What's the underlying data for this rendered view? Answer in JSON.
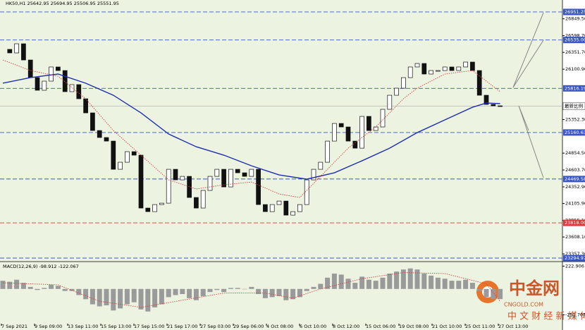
{
  "header": "HK50,H1 25642.95 25694.95 25506.95 25551.95",
  "chart_data": {
    "type": "candlestick",
    "close": [
      26396,
      26343,
      26479,
      26238,
      25976,
      25788,
      25924,
      26134,
      26081,
      25767,
      25872,
      25662,
      25452,
      25190,
      25086,
      25033,
      24614,
      24719,
      24876,
      24824,
      24038,
      23985,
      24090,
      24111,
      24614,
      24457,
      24509,
      24195,
      24038,
      24300,
      24509,
      24614,
      24352,
      24614,
      24562,
      24509,
      24614,
      24090,
      23985,
      24090,
      24142,
      23933,
      23985,
      24090,
      24457,
      24614,
      24719,
      25033,
      25295,
      25243,
      25033,
      24928,
      25400,
      25190,
      25243,
      25505,
      25714,
      25819,
      25976,
      26134,
      26186,
      26029,
      26081,
      26081,
      26134,
      26081,
      26134,
      26207,
      26081,
      25714,
      25578,
      25557,
      25551.95
    ],
    "ma_slow": {
      "x": [
        0,
        4,
        8,
        12,
        16,
        20,
        24,
        28,
        32,
        36,
        40,
        44,
        48,
        52,
        56,
        60,
        64,
        68,
        70,
        72
      ],
      "values": [
        25893,
        25976,
        26029,
        25893,
        25714,
        25452,
        25138,
        24949,
        24824,
        24666,
        24530,
        24467,
        24562,
        24740,
        24928,
        25159,
        25348,
        25536,
        25599,
        25589
      ]
    },
    "ma_fast": {
      "x": [
        0,
        4,
        8,
        12,
        16,
        20,
        24,
        28,
        32,
        36,
        40,
        43,
        46,
        50,
        54,
        58,
        60,
        64,
        68,
        70,
        72
      ],
      "values": [
        26238,
        26081,
        25997,
        25662,
        25190,
        24824,
        24457,
        24321,
        24383,
        24425,
        24247,
        24195,
        24509,
        24928,
        25243,
        25662,
        25819,
        26029,
        26081,
        25924,
        25767
      ]
    },
    "ylim": [
      23253,
      27129
    ],
    "yticks": [
      {
        "value": 26849.5,
        "label": "26849.50"
      },
      {
        "value": 26598.7,
        "label": "26598.70"
      },
      {
        "value": 26351.7,
        "label": "26351.70"
      },
      {
        "value": 26100.9,
        "label": "26100.90"
      },
      {
        "value": 25352.3,
        "label": "25352.30"
      },
      {
        "value": 24854.5,
        "label": "24854.50"
      },
      {
        "value": 24603.7,
        "label": "24603.70"
      },
      {
        "value": 24352.9,
        "label": "24352.90"
      },
      {
        "value": 24105.9,
        "label": "24105.90"
      },
      {
        "value": 23855.1,
        "label": "23855.10"
      },
      {
        "value": 23608.1,
        "label": "23608.10"
      },
      {
        "value": 23357.3,
        "label": "23357.30"
      }
    ],
    "levels": [
      {
        "value": 26951.25,
        "color": "#3a55c8"
      },
      {
        "value": {
          "value": 26535,
          "label": "26535.00"
        },
        "color": "#3a55c8"
      },
      {
        "value": 25816.19,
        "color": "#3a55c8"
      },
      {
        "value": 25160.63,
        "color": "#3a55c8"
      },
      {
        "value": 24469.58,
        "color": "#3a55c8"
      },
      {
        "value": {
          "value": 23818,
          "label": "23818.00"
        },
        "color": "#d83a3a"
      },
      {
        "value": 23294.97,
        "color": "#3a55c8"
      }
    ],
    "current": {
      "value": 25551.95,
      "label": "最新比例"
    },
    "xlabels": [
      "7 Sep 2021",
      "9 Sep 09:00",
      "13 Sep 11:00",
      "15 Sep 13:00",
      "17 Sep 15:00",
      "21 Sep 17:00",
      "27 Sep 03:00",
      "29 Sep 06:00",
      "4 Oct 08:00",
      "6 Oct 10:00",
      "8 Oct 12:00",
      "15 Oct 06:00",
      "19 Oct 08:00",
      "21 Oct 10:00",
      "25 Oct 11:00",
      "27 Oct 13:00"
    ],
    "macd": {
      "title": "MACD(12,26,9) -98.912 -122.067",
      "histogram": [
        80,
        70,
        90,
        60,
        20,
        -10,
        10,
        40,
        30,
        -20,
        -20,
        -60,
        -100,
        -150,
        -170,
        -160,
        -210,
        -190,
        -150,
        -130,
        -200,
        -220,
        -180,
        -150,
        -80,
        -60,
        -50,
        -90,
        -110,
        -70,
        -30,
        -10,
        -30,
        10,
        10,
        0,
        20,
        -50,
        -90,
        -80,
        -70,
        -110,
        -100,
        -80,
        -20,
        20,
        50,
        110,
        150,
        140,
        100,
        60,
        120,
        90,
        80,
        110,
        150,
        170,
        190,
        200,
        190,
        150,
        130,
        110,
        100,
        80,
        80,
        90,
        60,
        -20,
        -80,
        -100,
        -98.912
      ],
      "signal": {
        "x": [
          0,
          8,
          14,
          20,
          26,
          32,
          38,
          42,
          46,
          52,
          58,
          64,
          70,
          72
        ],
        "values": [
          60,
          40,
          -120,
          -180,
          -110,
          -40,
          -40,
          -90,
          0,
          100,
          160,
          150,
          50,
          -122.067
        ]
      },
      "ylim": [
        -331.8,
        259.9
      ],
      "yticks": [
        222.906,
        -251.706
      ]
    }
  },
  "watermark": {
    "brand": "中金网",
    "site": "CNGOLD.COM",
    "slogan": "中 文 财 经 新 媒 体"
  }
}
